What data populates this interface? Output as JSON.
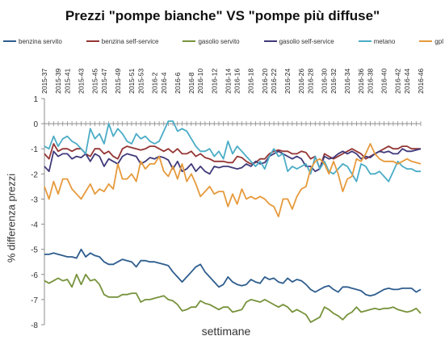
{
  "chart_data": {
    "type": "line",
    "title": "Prezzi \"pompe bianche\" VS \"pompe più diffuse\"",
    "xlabel": "settimane",
    "ylabel": "% differenza prezzi",
    "ylim": [
      -8,
      1
    ],
    "yticks": [
      1,
      0,
      -1,
      -2,
      -3,
      -4,
      -5,
      -6,
      -7,
      -8
    ],
    "grid": false,
    "legend_position": "top",
    "x_tick_labels": [
      "2015-37",
      "2015-39",
      "2015-41",
      "2015-43",
      "2015-45",
      "2015-47",
      "2015-49",
      "2015-51",
      "2015-53",
      "2016-2",
      "2016-4",
      "2016-6",
      "2016-8",
      "2016-10",
      "2016-12",
      "2016-14",
      "2016-16",
      "2016-18",
      "2016-20",
      "2016-22",
      "2016-24",
      "2016-26",
      "2016-28",
      "2016-30",
      "2016-32",
      "2016-34",
      "2016-36",
      "2016-38",
      "2016-40",
      "2016-42",
      "2016-44",
      "2016-46"
    ],
    "series": [
      {
        "name": "benzina servito",
        "color": "#2e5d8e",
        "values": [
          -5.2,
          -5.2,
          -5.15,
          -5.2,
          -5.25,
          -5.3,
          -5.3,
          -5.35,
          -5.0,
          -5.3,
          -5.15,
          -5.25,
          -5.3,
          -5.5,
          -5.6,
          -5.6,
          -5.5,
          -5.4,
          -5.45,
          -5.5,
          -5.7,
          -5.45,
          -5.45,
          -5.5,
          -5.5,
          -5.55,
          -5.6,
          -5.65,
          -5.9,
          -6.1,
          -6.3,
          -6.1,
          -5.9,
          -5.7,
          -5.6,
          -5.9,
          -6.1,
          -6.3,
          -6.5,
          -6.4,
          -6.1,
          -6.3,
          -6.4,
          -6.45,
          -6.4,
          -6.2,
          -6.3,
          -6.35,
          -6.1,
          -6.2,
          -6.15,
          -6.3,
          -6.35,
          -6.15,
          -6.3,
          -6.2,
          -6.25,
          -6.4,
          -6.6,
          -6.7,
          -6.6,
          -6.5,
          -6.45,
          -6.6,
          -6.7,
          -6.5,
          -6.5,
          -6.55,
          -6.6,
          -6.65,
          -6.8,
          -6.85,
          -6.8,
          -6.7,
          -6.6,
          -6.55,
          -6.6,
          -6.6,
          -6.55,
          -6.55,
          -6.55,
          -6.7,
          -6.6
        ]
      },
      {
        "name": "benzina self-service",
        "color": "#943634",
        "values": [
          -1.2,
          -1.4,
          -0.8,
          -1.1,
          -1.0,
          -1.0,
          -1.1,
          -1.0,
          -1.0,
          -1.2,
          -1.3,
          -1.0,
          -1.0,
          -1.2,
          -1.1,
          -1.3,
          -1.4,
          -1.0,
          -0.9,
          -0.95,
          -1.0,
          -1.05,
          -1.0,
          -0.9,
          -0.9,
          -1.0,
          -1.1,
          -1.0,
          -1.15,
          -1.0,
          -1.2,
          -1.2,
          -1.1,
          -1.3,
          -1.2,
          -1.35,
          -1.4,
          -1.5,
          -1.5,
          -1.5,
          -1.55,
          -1.55,
          -1.3,
          -1.35,
          -1.5,
          -1.6,
          -1.55,
          -1.4,
          -1.4,
          -1.2,
          -1.1,
          -1.05,
          -1.1,
          -1.1,
          -1.2,
          -1.2,
          -1.1,
          -1.15,
          -1.4,
          -1.3,
          -1.8,
          -1.2,
          -1.3,
          -1.4,
          -1.3,
          -1.2,
          -1.1,
          -1.0,
          -1.1,
          -1.2,
          -1.4,
          -1.3,
          -1.2,
          -1.1,
          -1.0,
          -0.9,
          -1.0,
          -1.0,
          -0.9,
          -0.9,
          -1.0,
          -1.0,
          -1.0
        ]
      },
      {
        "name": "gasolio servito",
        "color": "#77933c",
        "values": [
          -6.25,
          -6.35,
          -6.25,
          -6.15,
          -6.25,
          -6.2,
          -6.5,
          -6.0,
          -6.4,
          -6.0,
          -6.25,
          -6.2,
          -6.4,
          -6.8,
          -6.9,
          -6.9,
          -6.9,
          -6.8,
          -6.8,
          -6.75,
          -6.75,
          -7.1,
          -7.0,
          -7.0,
          -6.95,
          -6.9,
          -6.85,
          -7.0,
          -7.05,
          -7.2,
          -7.45,
          -7.4,
          -7.3,
          -7.3,
          -7.05,
          -7.15,
          -7.2,
          -7.3,
          -7.4,
          -7.3,
          -7.3,
          -7.5,
          -7.45,
          -7.4,
          -7.1,
          -7.0,
          -7.05,
          -7.1,
          -7.0,
          -7.1,
          -7.2,
          -7.3,
          -7.2,
          -7.3,
          -7.5,
          -7.4,
          -7.5,
          -7.6,
          -7.9,
          -7.8,
          -7.7,
          -7.3,
          -7.4,
          -7.55,
          -7.65,
          -7.8,
          -7.6,
          -7.5,
          -7.3,
          -7.5,
          -7.45,
          -7.4,
          -7.35,
          -7.4,
          -7.35,
          -7.35,
          -7.3,
          -7.4,
          -7.45,
          -7.5,
          -7.45,
          -7.35,
          -7.55
        ]
      },
      {
        "name": "gasolio self-service",
        "color": "#403a7a",
        "values": [
          -1.7,
          -1.9,
          -1.1,
          -1.3,
          -1.2,
          -1.2,
          -1.4,
          -1.3,
          -1.35,
          -1.2,
          -1.5,
          -1.2,
          -1.3,
          -1.7,
          -1.4,
          -1.5,
          -1.6,
          -1.3,
          -1.2,
          -1.25,
          -1.3,
          -1.6,
          -1.5,
          -1.35,
          -1.4,
          -1.3,
          -1.35,
          -1.45,
          -1.8,
          -1.5,
          -1.9,
          -1.8,
          -1.6,
          -1.9,
          -1.7,
          -1.9,
          -2.0,
          -1.7,
          -1.75,
          -1.7,
          -1.7,
          -1.75,
          -1.8,
          -1.75,
          -1.6,
          -1.7,
          -1.5,
          -1.6,
          -1.55,
          -1.3,
          -1.2,
          -1.1,
          -1.2,
          -1.3,
          -1.4,
          -1.3,
          -1.4,
          -1.7,
          -1.7,
          -1.9,
          -1.8,
          -1.3,
          -1.4,
          -1.35,
          -1.2,
          -1.1,
          -1.2,
          -1.1,
          -1.2,
          -1.4,
          -1.3,
          -1.35,
          -1.2,
          -1.1,
          -1.15,
          -1.1,
          -1.2,
          -1.2,
          -1.0,
          -1.1,
          -1.1,
          -1.05,
          -1.0
        ]
      },
      {
        "name": "metano",
        "color": "#4bacc6",
        "values": [
          -0.9,
          -1.0,
          -0.5,
          -0.9,
          -0.6,
          -0.5,
          -0.7,
          -0.8,
          -1.0,
          -1.2,
          -0.2,
          -0.6,
          -0.4,
          -0.8,
          -0.0,
          -0.5,
          -0.2,
          -0.4,
          -0.7,
          -0.8,
          -0.4,
          -0.6,
          -0.5,
          -0.7,
          -0.8,
          -0.7,
          -0.3,
          0.1,
          0.1,
          -0.3,
          -0.2,
          -0.3,
          -0.6,
          -0.9,
          -1.1,
          -1.1,
          -1.0,
          -1.3,
          -1.1,
          -1.4,
          -0.7,
          -1.2,
          -0.9,
          -1.1,
          -1.3,
          -1.5,
          -1.7,
          -1.5,
          -1.8,
          -1.3,
          -1.0,
          -1.3,
          -1.2,
          -1.9,
          -1.7,
          -1.8,
          -1.7,
          -1.6,
          -2.0,
          -1.3,
          -1.8,
          -1.5,
          -1.9,
          -2.0,
          -1.8,
          -1.6,
          -1.7,
          -2.0,
          -2.3,
          -1.6,
          -1.7,
          -2.0,
          -2.0,
          -1.9,
          -2.1,
          -2.3,
          -1.9,
          -1.5,
          -1.7,
          -1.8,
          -1.8,
          -1.9,
          -1.9
        ]
      },
      {
        "name": "gpl",
        "color": "#e69a3c",
        "values": [
          -2.5,
          -3.0,
          -2.3,
          -2.8,
          -2.2,
          -2.2,
          -2.6,
          -2.8,
          -3.0,
          -2.7,
          -2.4,
          -2.8,
          -2.6,
          -2.7,
          -2.4,
          -2.6,
          -1.6,
          -2.2,
          -2.2,
          -2.0,
          -2.3,
          -1.5,
          -1.8,
          -1.6,
          -1.6,
          -1.3,
          -1.9,
          -2.1,
          -1.7,
          -2.2,
          -1.6,
          -2.3,
          -2.0,
          -2.4,
          -2.9,
          -2.7,
          -2.5,
          -2.8,
          -2.7,
          -2.7,
          -3.3,
          -2.8,
          -3.2,
          -2.6,
          -3.0,
          -2.9,
          -3.0,
          -2.9,
          -3.0,
          -3.2,
          -3.3,
          -3.7,
          -3.0,
          -3.0,
          -3.4,
          -2.9,
          -2.6,
          -2.5,
          -1.8,
          -1.5,
          -1.4,
          -1.6,
          -2.0,
          -1.5,
          -2.0,
          -2.7,
          -2.2,
          -2.1,
          -1.4,
          -1.5,
          -1.2,
          -0.8,
          -1.2,
          -1.4,
          -1.5,
          -1.5,
          -1.5,
          -1.6,
          -1.5,
          -1.4,
          -1.5,
          -1.55,
          -1.6
        ]
      }
    ]
  }
}
